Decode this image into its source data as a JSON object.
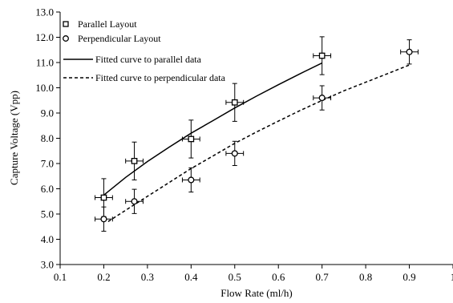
{
  "chart_data": {
    "type": "scatter",
    "xlabel": "Flow Rate (ml/h)",
    "ylabel": "Capture Voltage (Vpp)",
    "xlim": [
      0.1,
      1.0
    ],
    "ylim": [
      3.0,
      13.0
    ],
    "xticks": [
      0.1,
      0.2,
      0.3,
      0.4,
      0.5,
      0.6,
      0.7,
      0.8,
      0.9,
      1.0
    ],
    "yticks": [
      3.0,
      4.0,
      5.0,
      6.0,
      7.0,
      8.0,
      9.0,
      10.0,
      11.0,
      12.0,
      13.0
    ],
    "xtick_labels": [
      "0.1",
      "0.2",
      "0.3",
      "0.4",
      "0.5",
      "0.6",
      "0.7",
      "0.8",
      "0.9",
      "1"
    ],
    "ytick_labels": [
      "3.0",
      "4.0",
      "5.0",
      "6.0",
      "7.0",
      "8.0",
      "9.0",
      "10.0",
      "11.0",
      "12.0",
      "13.0"
    ],
    "grid": false,
    "legend_position": "top-left",
    "series": [
      {
        "name": "Parallel Layout",
        "marker": "square",
        "x": [
          0.2,
          0.27,
          0.4,
          0.5,
          0.7
        ],
        "y": [
          5.65,
          7.1,
          7.97,
          9.42,
          11.27
        ],
        "yerr": [
          0.75,
          0.75,
          0.75,
          0.75,
          0.75
        ],
        "xerr": [
          0.02,
          0.02,
          0.02,
          0.02,
          0.02
        ]
      },
      {
        "name": "Perpendicular Layout",
        "marker": "circle",
        "x": [
          0.2,
          0.27,
          0.4,
          0.5,
          0.7,
          0.9
        ],
        "y": [
          4.8,
          5.5,
          6.35,
          7.4,
          9.6,
          11.42
        ],
        "yerr": [
          0.48,
          0.48,
          0.48,
          0.48,
          0.48,
          0.48
        ],
        "xerr": [
          0.02,
          0.02,
          0.02,
          0.02,
          0.02,
          0.02
        ]
      }
    ],
    "fits": [
      {
        "name": "Fitted curve to parallel data",
        "style": "solid",
        "x": [
          0.2,
          0.25,
          0.3,
          0.35,
          0.4,
          0.45,
          0.5,
          0.55,
          0.6,
          0.65,
          0.7
        ],
        "y": [
          5.75,
          6.45,
          7.08,
          7.65,
          8.2,
          8.7,
          9.2,
          9.67,
          10.12,
          10.56,
          10.98
        ]
      },
      {
        "name": "Fitted curve to perpendicular data",
        "style": "dashed",
        "x": [
          0.21,
          0.25,
          0.3,
          0.35,
          0.4,
          0.45,
          0.5,
          0.55,
          0.6,
          0.65,
          0.7,
          0.75,
          0.8,
          0.85,
          0.9
        ],
        "y": [
          4.7,
          5.15,
          5.7,
          6.25,
          6.8,
          7.3,
          7.8,
          8.25,
          8.68,
          9.1,
          9.5,
          9.88,
          10.22,
          10.56,
          10.9
        ]
      }
    ]
  }
}
